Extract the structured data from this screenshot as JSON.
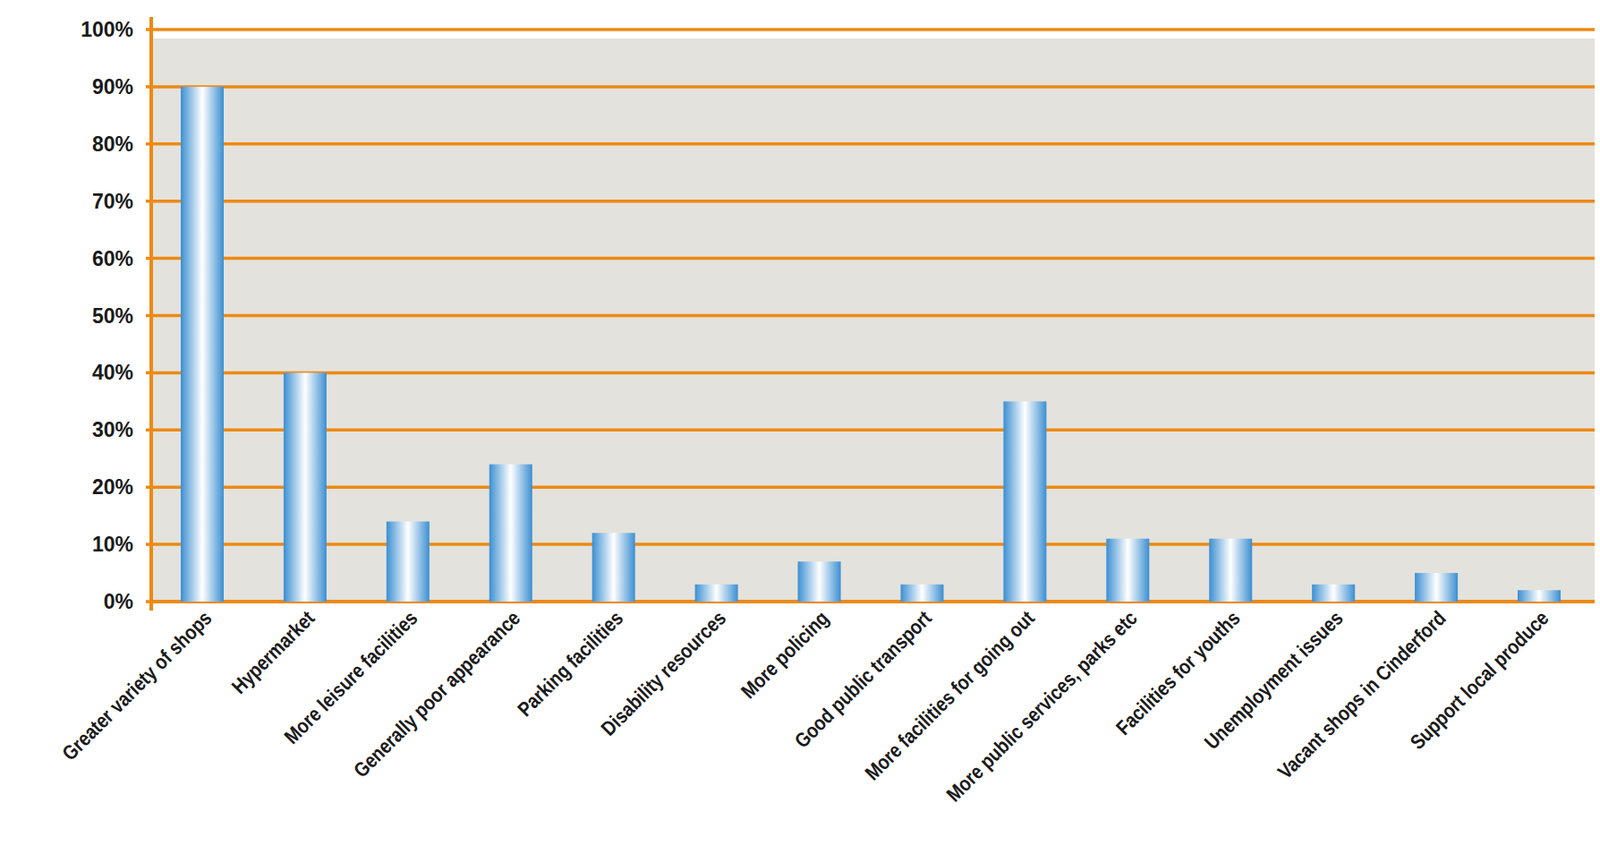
{
  "chart_data": {
    "type": "bar",
    "categories": [
      "Greater variety of shops",
      "Hypermarket",
      "More leisure facilities",
      "Generally poor appearance",
      "Parking facilities",
      "Disability resources",
      "More policing",
      "Good public transport",
      "More facilities for going out",
      "More public services, parks etc",
      "Facilities for youths",
      "Unemployment issues",
      "Vacant shops in Cinderford",
      "Support local produce"
    ],
    "values": [
      90,
      40,
      14,
      24,
      12,
      3,
      7,
      3,
      35,
      11,
      11,
      3,
      5,
      2
    ],
    "color": "#3b8fd2",
    "ylim": [
      0,
      100
    ],
    "yticks": [
      {
        "value": 0,
        "label": "0%"
      },
      {
        "value": 10,
        "label": "10%"
      },
      {
        "value": 20,
        "label": "20%"
      },
      {
        "value": 30,
        "label": "30%"
      },
      {
        "value": 40,
        "label": "40%"
      },
      {
        "value": 50,
        "label": "50%"
      },
      {
        "value": 60,
        "label": "60%"
      },
      {
        "value": 70,
        "label": "70%"
      },
      {
        "value": 80,
        "label": "80%"
      },
      {
        "value": 90,
        "label": "90%"
      },
      {
        "value": 100,
        "label": "100%"
      }
    ],
    "grid": true
  }
}
